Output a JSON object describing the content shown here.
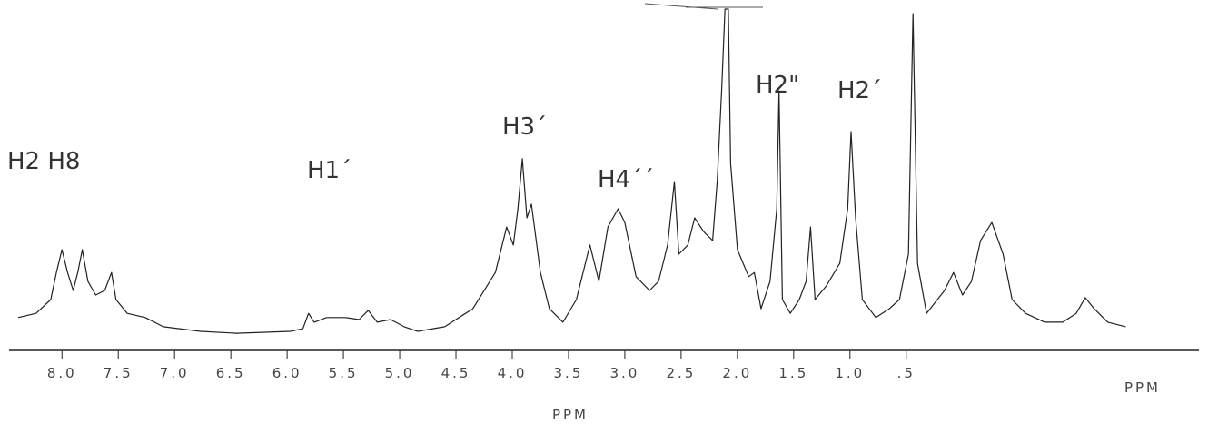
{
  "chart_data": {
    "type": "line",
    "annotations": [
      "H2 H8",
      "H1´",
      "H3´",
      "H4´´",
      "H2\"",
      "H2´"
    ],
    "xlabel": "PPM",
    "axis_end_label": "PPM",
    "xlim": [
      8.47,
      -2.1
    ],
    "ylim": [
      0,
      100
    ],
    "xticks": [
      {
        "value": 8,
        "label": "8.0"
      },
      7.5,
      {
        "value": 7,
        "label": "7.0"
      },
      6.5,
      {
        "value": 6,
        "label": "6.0"
      },
      5.5,
      {
        "value": 5,
        "label": "5.0"
      },
      4.5,
      {
        "value": 4,
        "label": "4.0"
      },
      3.5,
      {
        "value": 3,
        "label": "3.0"
      },
      2.5,
      {
        "value": 2,
        "label": "2.0"
      },
      1.5,
      {
        "value": 1,
        "label": "1.0"
      },
      {
        "value": 0.5,
        "label": ".5"
      }
    ],
    "series": [
      {
        "color": "#222222",
        "x": [
          8.39,
          8.23,
          8.1,
          8.05,
          8.0,
          7.95,
          7.9,
          7.86,
          7.82,
          7.77,
          7.7,
          7.62,
          7.56,
          7.52,
          7.42,
          7.26,
          7.1,
          6.77,
          6.45,
          5.97,
          5.86,
          5.81,
          5.76,
          5.65,
          5.48,
          5.36,
          5.28,
          5.2,
          5.08,
          4.96,
          4.84,
          4.6,
          4.35,
          4.15,
          4.05,
          3.99,
          3.95,
          3.91,
          3.87,
          3.83,
          3.75,
          3.67,
          3.55,
          3.43,
          3.31,
          3.23,
          3.15,
          3.06,
          3.0,
          2.9,
          2.78,
          2.7,
          2.62,
          2.56,
          2.52,
          2.44,
          2.38,
          2.3,
          2.22,
          2.18,
          2.14,
          2.11,
          2.08,
          2.06,
          2.0,
          1.9,
          1.85,
          1.79,
          1.71,
          1.65,
          1.63,
          1.6,
          1.53,
          1.45,
          1.39,
          1.35,
          1.31,
          1.21,
          1.09,
          1.02,
          0.99,
          0.95,
          0.89,
          0.77,
          0.65,
          0.56,
          0.48,
          0.44,
          0.4,
          0.32,
          0.16,
          0.08,
          0.0,
          -0.08,
          -0.16,
          -0.26,
          -0.36,
          -0.44,
          -0.56,
          -0.73,
          -0.89,
          -1.01,
          -1.09,
          -1.17,
          -1.29,
          -1.45
        ],
        "values": [
          5.6,
          6.9,
          11.1,
          19.4,
          26.4,
          19.4,
          13.9,
          19.4,
          26.4,
          16.7,
          12.5,
          13.9,
          19.4,
          11.1,
          6.9,
          5.6,
          2.8,
          1.4,
          0.8,
          1.4,
          2.2,
          6.9,
          4.2,
          5.6,
          5.6,
          5.0,
          7.8,
          4.2,
          5.0,
          2.8,
          1.4,
          2.8,
          8.3,
          19.4,
          33.3,
          27.8,
          38.9,
          54.2,
          36.1,
          40.3,
          19.4,
          8.3,
          4.2,
          11.1,
          27.8,
          16.7,
          33.3,
          38.9,
          34.7,
          18.1,
          13.9,
          16.7,
          27.8,
          47.2,
          25.0,
          27.8,
          36.1,
          31.9,
          29.2,
          47.2,
          75.0,
          100,
          100,
          52.8,
          26.4,
          18.1,
          19.4,
          8.3,
          16.7,
          38.9,
          75.0,
          11.1,
          6.9,
          11.1,
          16.7,
          33.3,
          11.1,
          15.3,
          22.2,
          38.9,
          62.5,
          36.1,
          11.1,
          5.6,
          8.3,
          11.1,
          25.0,
          98.6,
          22.2,
          6.9,
          13.9,
          19.4,
          12.5,
          16.7,
          29.2,
          34.7,
          25.0,
          11.1,
          6.9,
          4.2,
          4.2,
          6.9,
          11.7,
          8.3,
          4.2,
          2.8
        ]
      }
    ]
  }
}
